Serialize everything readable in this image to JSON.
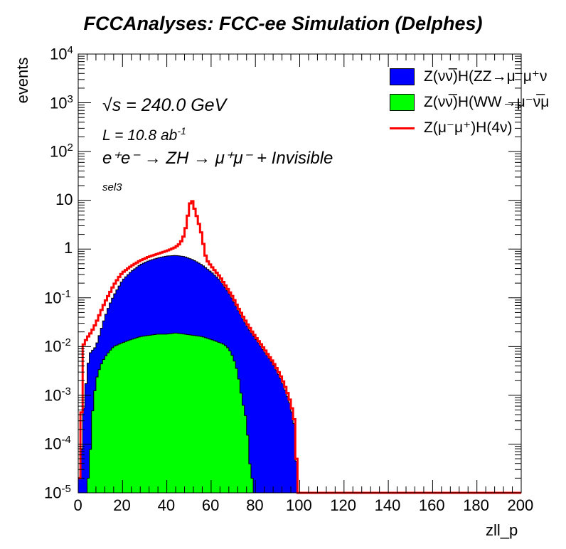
{
  "header": {
    "title": "FCCAnalyses: FCC-ee Simulation (Delphes)"
  },
  "annotations": {
    "sqrt_s": "√s = 240.0 GeV",
    "lumi": "L = 10.8 ab",
    "lumi_exp": "-1",
    "process": "e⁺e⁻ → ZH → μ⁺μ⁻ + Invisible",
    "selection": "sel3"
  },
  "colors": {
    "zz_fill": "#0000ff",
    "ww_fill": "#00ff00",
    "signal_line": "#ff0000"
  },
  "chart_data": {
    "type": "bar",
    "title": "FCCAnalyses: FCC-ee Simulation (Delphes)",
    "xlabel": "zll_p",
    "ylabel": "events",
    "xlim": [
      0,
      200
    ],
    "ylim": [
      1e-05,
      10000
    ],
    "yscale": "log",
    "bin_width": 1,
    "grid": false,
    "legend_position": "top-right",
    "x_ticks": [
      "0",
      "20",
      "40",
      "60",
      "80",
      "100",
      "120",
      "140",
      "160",
      "180",
      "200"
    ],
    "y_ticks": [
      {
        "base": "10",
        "exp": "-5"
      },
      {
        "base": "10",
        "exp": "-4"
      },
      {
        "base": "10",
        "exp": "-3"
      },
      {
        "base": "10",
        "exp": "-2"
      },
      {
        "base": "10",
        "exp": "-1"
      },
      {
        "base": "1",
        "exp": ""
      },
      {
        "base": "10",
        "exp": ""
      },
      {
        "base": "10",
        "exp": "2"
      },
      {
        "base": "10",
        "exp": "3"
      },
      {
        "base": "10",
        "exp": "4"
      }
    ],
    "series": [
      {
        "name": "Z(νν̅)H(ZZ→μ⁻μ⁺ν",
        "style": "filled",
        "color": "#0000ff",
        "points": [
          [
            1,
            2e-05
          ],
          [
            2,
            0.0003
          ],
          [
            3,
            0.001
          ],
          [
            4,
            0.003
          ],
          [
            5,
            0.007
          ],
          [
            6,
            0.008
          ],
          [
            8,
            0.01
          ],
          [
            10,
            0.02
          ],
          [
            12,
            0.04
          ],
          [
            14,
            0.07
          ],
          [
            16,
            0.11
          ],
          [
            18,
            0.16
          ],
          [
            20,
            0.23
          ],
          [
            24,
            0.35
          ],
          [
            28,
            0.48
          ],
          [
            32,
            0.58
          ],
          [
            36,
            0.66
          ],
          [
            40,
            0.72
          ],
          [
            44,
            0.74
          ],
          [
            48,
            0.7
          ],
          [
            52,
            0.6
          ],
          [
            56,
            0.47
          ],
          [
            60,
            0.34
          ],
          [
            64,
            0.23
          ],
          [
            68,
            0.13
          ],
          [
            70,
            0.09
          ],
          [
            72,
            0.06
          ],
          [
            74,
            0.04
          ],
          [
            76,
            0.028
          ],
          [
            78,
            0.02
          ],
          [
            80,
            0.015
          ],
          [
            82,
            0.011
          ],
          [
            84,
            0.008
          ],
          [
            86,
            0.006
          ],
          [
            88,
            0.0045
          ],
          [
            90,
            0.003
          ],
          [
            92,
            0.002
          ],
          [
            94,
            0.0011
          ],
          [
            96,
            0.0006
          ],
          [
            98,
            0.0002
          ],
          [
            99,
            1e-05
          ]
        ]
      },
      {
        "name": "Z(νν̅)H(WW→μ⁻ν̅μ",
        "style": "filled",
        "color": "#00ff00",
        "points": [
          [
            5,
            2e-05
          ],
          [
            6,
            0.0003
          ],
          [
            8,
            0.002
          ],
          [
            10,
            0.004
          ],
          [
            12,
            0.006
          ],
          [
            14,
            0.008
          ],
          [
            16,
            0.01
          ],
          [
            18,
            0.011
          ],
          [
            20,
            0.012
          ],
          [
            24,
            0.014
          ],
          [
            28,
            0.016
          ],
          [
            32,
            0.017
          ],
          [
            36,
            0.018
          ],
          [
            40,
            0.018
          ],
          [
            44,
            0.019
          ],
          [
            48,
            0.018
          ],
          [
            52,
            0.017
          ],
          [
            56,
            0.016
          ],
          [
            60,
            0.014
          ],
          [
            64,
            0.012
          ],
          [
            66,
            0.011
          ],
          [
            68,
            0.009
          ],
          [
            70,
            0.006
          ],
          [
            72,
            0.003
          ],
          [
            74,
            0.0008
          ],
          [
            76,
            0.0003
          ],
          [
            78,
            2e-05
          ]
        ]
      },
      {
        "name": "Z(μ⁻μ⁺)H(4ν)",
        "style": "line",
        "color": "#ff0000",
        "points": [
          [
            1,
            2e-05
          ],
          [
            2,
            0.01
          ],
          [
            4,
            0.015
          ],
          [
            6,
            0.02
          ],
          [
            8,
            0.03
          ],
          [
            10,
            0.05
          ],
          [
            12,
            0.08
          ],
          [
            14,
            0.12
          ],
          [
            16,
            0.18
          ],
          [
            18,
            0.25
          ],
          [
            20,
            0.33
          ],
          [
            24,
            0.45
          ],
          [
            28,
            0.58
          ],
          [
            32,
            0.7
          ],
          [
            36,
            0.8
          ],
          [
            40,
            0.92
          ],
          [
            42,
            1.0
          ],
          [
            44,
            1.1
          ],
          [
            46,
            1.3
          ],
          [
            48,
            2.0
          ],
          [
            50,
            6.5
          ],
          [
            51,
            11.5
          ],
          [
            52,
            8.0
          ],
          [
            54,
            4.0
          ],
          [
            56,
            1.8
          ],
          [
            57,
            0.9
          ],
          [
            58,
            0.6
          ],
          [
            60,
            0.45
          ],
          [
            64,
            0.27
          ],
          [
            68,
            0.14
          ],
          [
            70,
            0.1
          ],
          [
            72,
            0.065
          ],
          [
            74,
            0.045
          ],
          [
            76,
            0.031
          ],
          [
            78,
            0.022
          ],
          [
            80,
            0.016
          ],
          [
            82,
            0.012
          ],
          [
            84,
            0.009
          ],
          [
            86,
            0.0065
          ],
          [
            88,
            0.0048
          ],
          [
            90,
            0.0033
          ],
          [
            92,
            0.0022
          ],
          [
            94,
            0.0013
          ],
          [
            96,
            0.0007
          ],
          [
            98,
            0.00025
          ],
          [
            99,
            1e-05
          ],
          [
            200,
            1e-05
          ]
        ]
      }
    ]
  }
}
